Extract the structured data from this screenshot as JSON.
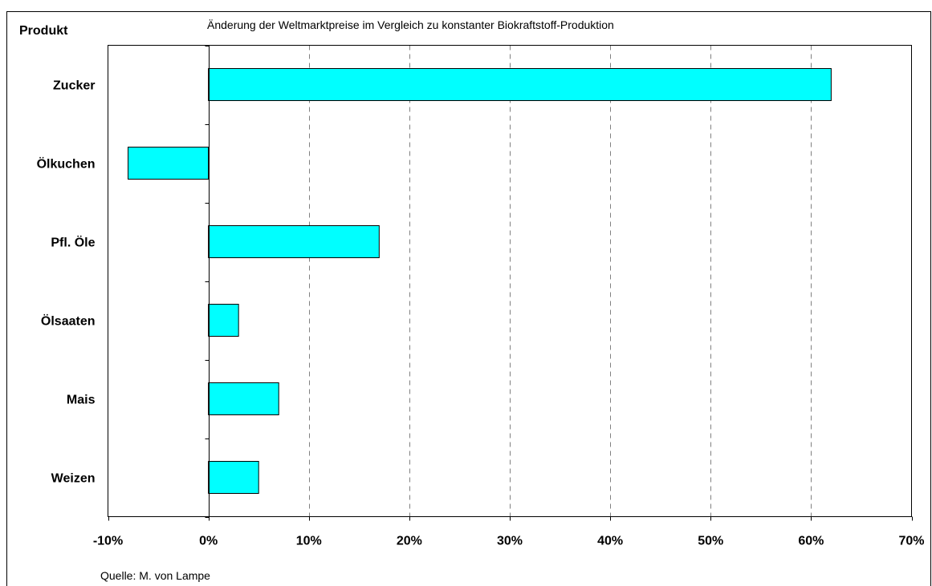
{
  "chart_data": {
    "type": "bar",
    "orientation": "horizontal",
    "title": "Änderung der Weltmarktpreise im Vergleich zu konstanter Biokraftstoff-Produktion",
    "ylabel": "Produkt",
    "source": "Quelle: M. von Lampe",
    "categories": [
      "Zucker",
      "Ölkuchen",
      "Pfl. Öle",
      "Ölsaaten",
      "Mais",
      "Weizen"
    ],
    "values": [
      62,
      -8,
      17,
      3,
      7,
      5
    ],
    "value_unit": "%",
    "xlim": [
      -10,
      70
    ],
    "xticks": [
      -10,
      0,
      10,
      20,
      30,
      40,
      50,
      60,
      70
    ],
    "xtick_labels": [
      "-10%",
      "0%",
      "10%",
      "20%",
      "30%",
      "40%",
      "50%",
      "60%",
      "70%"
    ],
    "grid": "vertical dashed",
    "bar_color": "#00ffff",
    "legend": "none"
  }
}
